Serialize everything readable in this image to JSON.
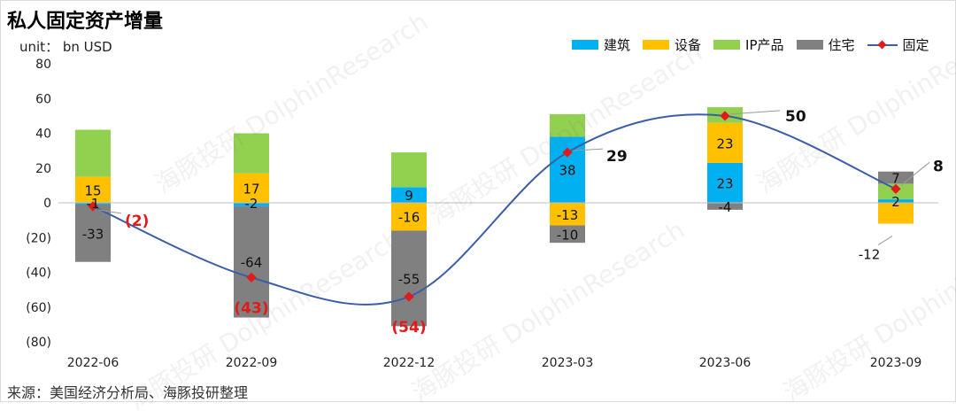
{
  "title": "私人固定资产增量",
  "unit": "unit：  bn USD",
  "source": "来源：美国经济分析局、海豚投研整理",
  "watermark": "海豚投研 DolphinResearch",
  "chart_data": {
    "type": "bar",
    "stacked": true,
    "categories": [
      "2022-06",
      "2022-09",
      "2022-12",
      "2023-03",
      "2023-06",
      "2023-09"
    ],
    "series": [
      {
        "name": "建筑",
        "color": "#00b0f0",
        "values": [
          -1,
          -2,
          9,
          38,
          23,
          2
        ],
        "labels": [
          "-1",
          "-2",
          "9",
          "38",
          "23",
          "2"
        ]
      },
      {
        "name": "设备",
        "color": "#ffc000",
        "values": [
          15,
          17,
          -16,
          -13,
          23,
          -12
        ],
        "labels": [
          "15",
          "17",
          "-16",
          "-13",
          "23",
          "-12"
        ]
      },
      {
        "name": "IP产品",
        "color": "#92d050",
        "values": [
          27,
          23,
          20,
          13,
          9,
          9
        ],
        "labels": [
          "",
          "",
          "",
          "",
          "",
          ""
        ]
      },
      {
        "name": "住宅",
        "color": "#808080",
        "values": [
          -33,
          -64,
          -55,
          -10,
          -4,
          7
        ],
        "labels": [
          "-33",
          "-64",
          "-55",
          "-10",
          "-4",
          "7"
        ]
      }
    ],
    "line": {
      "name": "固定",
      "color": "#3b5ea8",
      "marker_color": "#e11b1b",
      "values": [
        -2,
        -43,
        -54,
        29,
        50,
        8
      ],
      "labels": [
        "(2)",
        "(43)",
        "(54)",
        "29",
        "50",
        "8"
      ]
    },
    "yticks": [
      "80",
      "60",
      "40",
      "20",
      "0",
      "(20)",
      "(40)",
      "(60)",
      "(80)"
    ],
    "ylim": [
      -80,
      80
    ],
    "legend_position": "top-right"
  }
}
